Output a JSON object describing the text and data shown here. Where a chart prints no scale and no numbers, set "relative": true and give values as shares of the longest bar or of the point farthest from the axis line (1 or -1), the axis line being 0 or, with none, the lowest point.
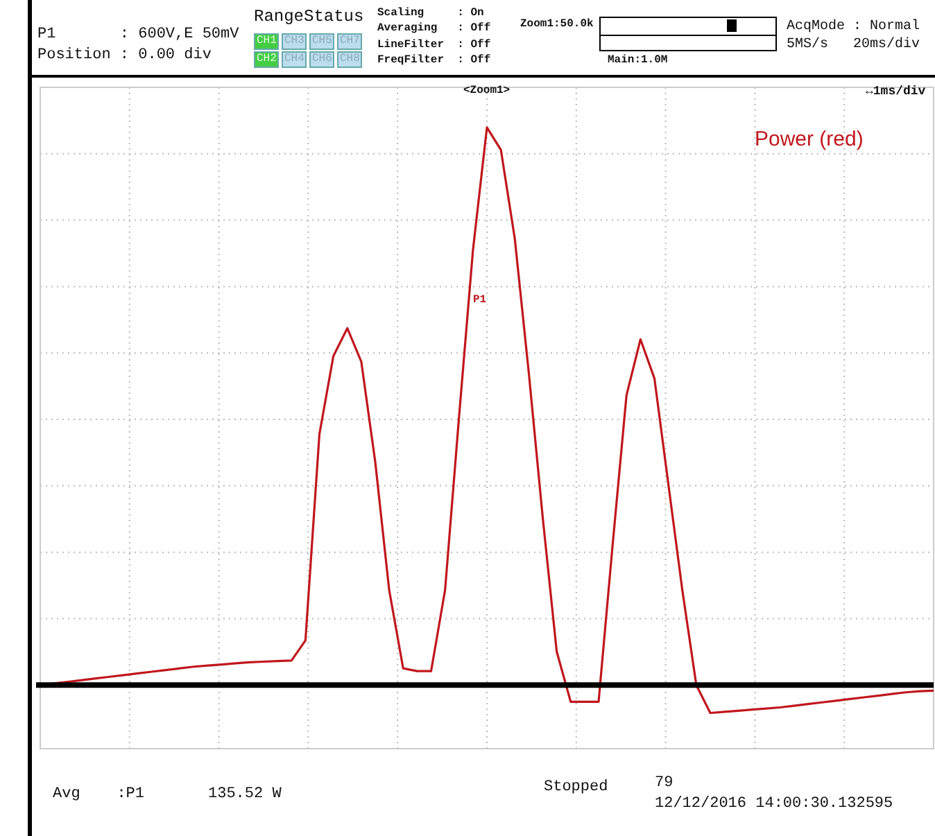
{
  "chart_data": {
    "type": "line",
    "relative": true,
    "grid": true,
    "marker": "none",
    "line_style": "solid",
    "categories": [
      null,
      null,
      null,
      null,
      null,
      null,
      null,
      null,
      null,
      null,
      null,
      null,
      null,
      null,
      null,
      null,
      null,
      null,
      null,
      null,
      null,
      null,
      null,
      null,
      null,
      null,
      null,
      null,
      null,
      null,
      null,
      null,
      null,
      null,
      null,
      null,
      null,
      null,
      null,
      null,
      null,
      null,
      null,
      null,
      null,
      null,
      null,
      null,
      null,
      null,
      null,
      null,
      null,
      null,
      null,
      null,
      null,
      null,
      null,
      null,
      null,
      null,
      null,
      null,
      null
    ],
    "series": [
      {
        "name": "Power (red)",
        "color": "#c0171d",
        "values": [
          0,
          0.003,
          0.006,
          0.009,
          0.012,
          0.015,
          0.018,
          0.021,
          0.024,
          0.027,
          0.03,
          0.033,
          0.035,
          0.037,
          0.039,
          0.041,
          0.042,
          0.043,
          0.044,
          0.08,
          0.45,
          0.59,
          0.64,
          0.58,
          0.4,
          0.17,
          0.03,
          0.025,
          0.025,
          0.17,
          0.48,
          0.78,
          1,
          0.96,
          0.8,
          0.56,
          0.3,
          0.06,
          -0.03,
          -0.03,
          -0.03,
          0.25,
          0.52,
          0.62,
          0.55,
          0.36,
          0.17,
          0,
          -0.05,
          -0.048,
          -0.046,
          -0.044,
          -0.042,
          -0.04,
          -0.037,
          -0.034,
          -0.031,
          -0.028,
          -0.025,
          -0.022,
          -0.019,
          -0.016,
          -0.013,
          -0.011,
          -0.01
        ]
      }
    ],
    "annotations": [
      "P1       : 600V,E 50mV",
      "Position : 0.00 div",
      "RangeStatus",
      "CH1",
      "CH3",
      "CH5",
      "CH7",
      "CH2",
      "CH4",
      "CH6",
      "CH8",
      "Scaling     : On",
      "Averaging   : Off",
      "LineFilter  : Off",
      "FreqFilter  : Off",
      "Zoom1:50.0k",
      "Main:1.0M",
      "AcqMode : Normal",
      "5MS/s   20ms/div",
      "<Zoom1>",
      "↔1ms/div",
      "P1",
      "Avg    :P1",
      "135.52 W",
      "Stopped",
      "79",
      "12/12/2016 14:00:30.132595"
    ]
  }
}
